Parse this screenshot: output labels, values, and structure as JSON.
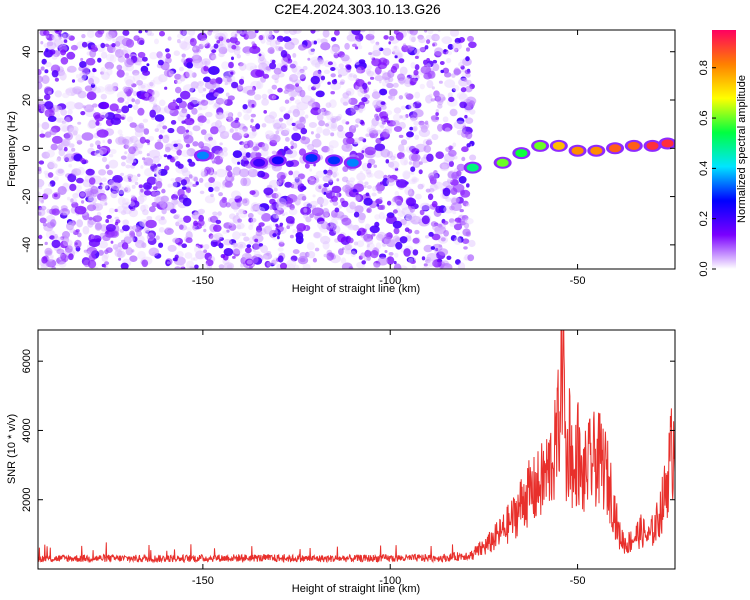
{
  "figure": {
    "title": "C2E4.2024.303.10.13.G26",
    "colors": {
      "snr_line": "#e8302c",
      "axes": "#000000",
      "dots": "#8a2be2"
    }
  },
  "chart_data": [
    {
      "type": "heatmap",
      "xlabel": "Height of straight line (km)",
      "ylabel": "Frequency (Hz)",
      "xlim": [
        -194,
        -24
      ],
      "ylim": [
        -50,
        49
      ],
      "xticks": [
        -150,
        -100,
        -50
      ],
      "yticks": [
        -40,
        -20,
        0,
        20,
        40
      ],
      "colorbar": {
        "label": "Normalized spectral amplitude",
        "range": [
          0,
          0.95
        ],
        "ticks": [
          0.0,
          0.2,
          0.4,
          0.6,
          0.8
        ],
        "colormap": [
          "#ffffff",
          "#7a00ff",
          "#0000ff",
          "#00e5ff",
          "#00ff40",
          "#ffff00",
          "#ff8000",
          "#ff0060"
        ]
      },
      "noise_region": {
        "x_range": [
          -194,
          -78
        ],
        "amplitude": [
          0.02,
          0.2
        ]
      },
      "features": [
        {
          "x": -150,
          "freq": -3,
          "amplitude": 0.35
        },
        {
          "x": -135,
          "freq": -6,
          "amplitude": 0.2
        },
        {
          "x": -130,
          "freq": -5,
          "amplitude": 0.25
        },
        {
          "x": -121,
          "freq": -4,
          "amplitude": 0.3
        },
        {
          "x": -115,
          "freq": -5,
          "amplitude": 0.3
        },
        {
          "x": -110,
          "freq": -6,
          "amplitude": 0.35
        },
        {
          "x": -78,
          "freq": -8,
          "amplitude": 0.5
        },
        {
          "x": -70,
          "freq": -6,
          "amplitude": 0.6
        },
        {
          "x": -65,
          "freq": -2,
          "amplitude": 0.55
        },
        {
          "x": -60,
          "freq": 1,
          "amplitude": 0.6
        },
        {
          "x": -55,
          "freq": 1,
          "amplitude": 0.75
        },
        {
          "x": -50,
          "freq": -1,
          "amplitude": 0.8
        },
        {
          "x": -45,
          "freq": -1,
          "amplitude": 0.8
        },
        {
          "x": -40,
          "freq": 0,
          "amplitude": 0.85
        },
        {
          "x": -35,
          "freq": 1,
          "amplitude": 0.85
        },
        {
          "x": -30,
          "freq": 1,
          "amplitude": 0.9
        },
        {
          "x": -26,
          "freq": 2,
          "amplitude": 0.9
        }
      ]
    },
    {
      "type": "line",
      "xlabel": "Height of straight line (km)",
      "ylabel": "SNR (10 * v/v)",
      "xlim": [
        -194,
        -24
      ],
      "ylim": [
        0,
        6900
      ],
      "xticks": [
        -150,
        -100,
        -50
      ],
      "yticks": [
        2000,
        4000,
        6000
      ],
      "series": [
        {
          "x": [
            -194,
            -180,
            -160,
            -140,
            -120,
            -100,
            -85,
            -78,
            -74,
            -70,
            -67,
            -64,
            -61,
            -58,
            -56,
            -55,
            -54,
            -53,
            -52,
            -51,
            -50,
            -49,
            -47,
            -45,
            -43,
            -41,
            -39,
            -37,
            -35,
            -33,
            -31,
            -29,
            -27,
            -25,
            -24
          ],
          "y": [
            300,
            310,
            300,
            320,
            300,
            310,
            320,
            420,
            700,
            1100,
            1500,
            2100,
            2300,
            2800,
            3400,
            4200,
            6800,
            2800,
            4100,
            2300,
            3600,
            2500,
            3000,
            3200,
            3000,
            2200,
            1000,
            700,
            900,
            1100,
            900,
            1300,
            2000,
            3300,
            3800
          ]
        }
      ]
    }
  ]
}
